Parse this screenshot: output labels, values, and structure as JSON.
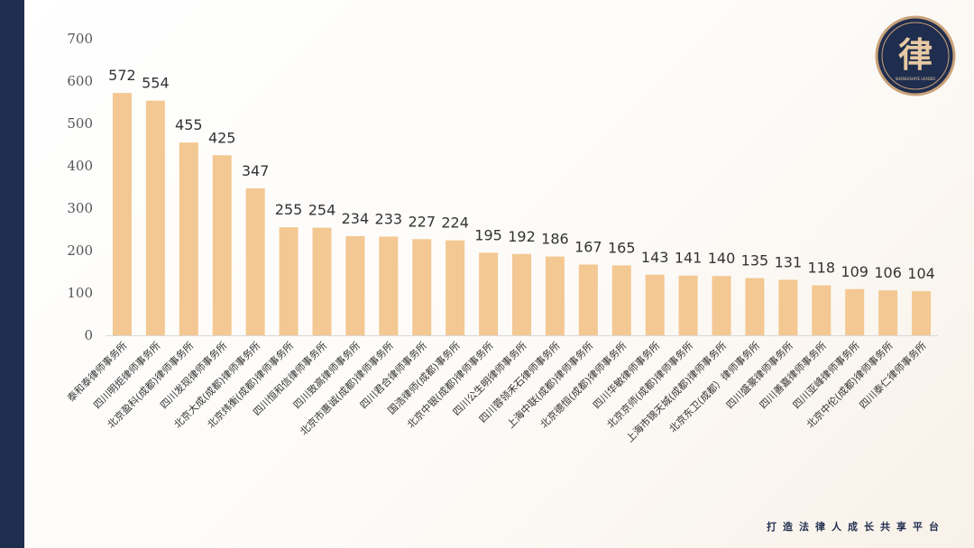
{
  "chart_data": {
    "type": "bar",
    "title": "",
    "xlabel": "",
    "ylabel": "",
    "ylim": [
      0,
      700
    ],
    "yticks": [
      0,
      100,
      200,
      300,
      400,
      500,
      600,
      700
    ],
    "grid": false,
    "categories": [
      "泰和泰律师事务所",
      "四川明炬律师事务所",
      "北京盈科(成都)律师事务所",
      "四川发现律师事务所",
      "北京大成(成都)律师事务所",
      "北京炜衡(成都)律师事务所",
      "四川恒和信律师事务所",
      "四川致高律师事务所",
      "北京市惠诚(成都)律师事务所",
      "四川君合律师事务所",
      "国浩律师(成都)事务所",
      "北京中银(成都)律师事务所",
      "四川公生明律师事务所",
      "四川蓉领禾石律师事务所",
      "上海中联(成都)律师事务所",
      "北京德恒(成都)律师事务所",
      "四川华敏律师事务所",
      "北京京师(成都)律师事务所",
      "上海市锦天城(成都)律师事务所",
      "北京东卫(成都）律师事务所",
      "四川盛豪律师事务所",
      "四川善嘉律师事务所",
      "四川亚峰律师事务所",
      "北京中伦(成都)律师事务所",
      "四川泰仁律师事务所"
    ],
    "values": [
      572,
      554,
      455,
      425,
      347,
      255,
      254,
      234,
      233,
      227,
      224,
      195,
      192,
      186,
      167,
      165,
      143,
      141,
      140,
      135,
      131,
      118,
      109,
      106,
      104
    ],
    "bar_color": "#f3c892"
  },
  "logo": {
    "glyph": "律",
    "subtext": "SHENLVSHIYE LEADER"
  },
  "footer": {
    "slogan": "打造法律人成长共享平台"
  },
  "colors": {
    "sidebar": "#1f2d4e",
    "accent_gold": "#c9a27a"
  }
}
